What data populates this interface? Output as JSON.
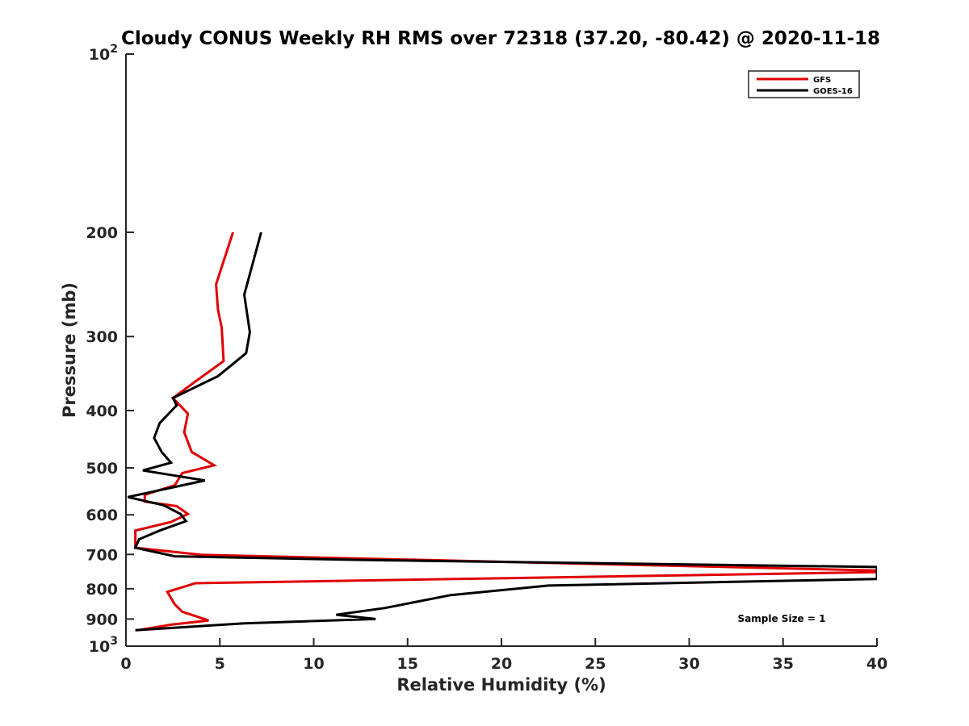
{
  "chart_data": {
    "type": "line",
    "title": "Cloudy CONUS Weekly RH RMS over 72318 (37.20, -80.42) @ 2020-11-18",
    "xlabel": "Relative Humidity (%)",
    "ylabel": "Pressure (mb)",
    "xlim": [
      0,
      40
    ],
    "ylim": [
      100,
      1000
    ],
    "yscale": "log",
    "y_reversed": true,
    "x_ticks": [
      "0",
      "5",
      "10",
      "15",
      "20",
      "25",
      "30",
      "35",
      "40"
    ],
    "y_ticks": [
      {
        "value": 100,
        "base": "10",
        "exp": "2"
      },
      {
        "value": 200,
        "label": "200"
      },
      {
        "value": 300,
        "label": "300"
      },
      {
        "value": 400,
        "label": "400"
      },
      {
        "value": 500,
        "label": "500"
      },
      {
        "value": 600,
        "label": "600"
      },
      {
        "value": 700,
        "label": "700"
      },
      {
        "value": 800,
        "label": "800"
      },
      {
        "value": 900,
        "label": "900"
      },
      {
        "value": 1000,
        "base": "10",
        "exp": "3"
      }
    ],
    "legend_position": "top-right",
    "series": [
      {
        "name": "GFS",
        "color": "#e00000",
        "points": [
          [
            5.7,
            200
          ],
          [
            4.8,
            245
          ],
          [
            4.9,
            270
          ],
          [
            5.1,
            290
          ],
          [
            5.2,
            330
          ],
          [
            3.3,
            365
          ],
          [
            2.5,
            381
          ],
          [
            3.3,
            405
          ],
          [
            3.1,
            435
          ],
          [
            3.5,
            470
          ],
          [
            4.7,
            495
          ],
          [
            3.0,
            510
          ],
          [
            2.6,
            535
          ],
          [
            1.0,
            555
          ],
          [
            1.0,
            570
          ],
          [
            2.7,
            580
          ],
          [
            3.3,
            598
          ],
          [
            2.4,
            617
          ],
          [
            0.5,
            638
          ],
          [
            0.5,
            682
          ],
          [
            4.0,
            701
          ],
          [
            40,
            745
          ],
          [
            40,
            750
          ],
          [
            3.7,
            783
          ],
          [
            2.2,
            810
          ],
          [
            2.6,
            850
          ],
          [
            3.0,
            875
          ],
          [
            4.4,
            905
          ],
          [
            2.4,
            920
          ],
          [
            0.6,
            940
          ]
        ]
      },
      {
        "name": "GOES-16",
        "color": "#000000",
        "points": [
          [
            7.2,
            200
          ],
          [
            6.3,
            255
          ],
          [
            6.6,
            295
          ],
          [
            6.4,
            320
          ],
          [
            4.9,
            350
          ],
          [
            2.5,
            381
          ],
          [
            2.7,
            392
          ],
          [
            1.8,
            420
          ],
          [
            1.5,
            445
          ],
          [
            1.9,
            470
          ],
          [
            2.4,
            490
          ],
          [
            0.9,
            505
          ],
          [
            4.2,
            525
          ],
          [
            0.1,
            560
          ],
          [
            2.0,
            578
          ],
          [
            2.9,
            598
          ],
          [
            3.2,
            615
          ],
          [
            1.8,
            638
          ],
          [
            0.7,
            660
          ],
          [
            0.5,
            682
          ],
          [
            2.6,
            705
          ],
          [
            12.5,
            715
          ],
          [
            40,
            735
          ],
          [
            40,
            770
          ],
          [
            22.5,
            790
          ],
          [
            17.3,
            820
          ],
          [
            13.8,
            862
          ],
          [
            11.2,
            885
          ],
          [
            13.3,
            900
          ],
          [
            6.3,
            915
          ],
          [
            0.5,
            940
          ]
        ]
      }
    ],
    "annotation": "Sample Size = 1"
  }
}
